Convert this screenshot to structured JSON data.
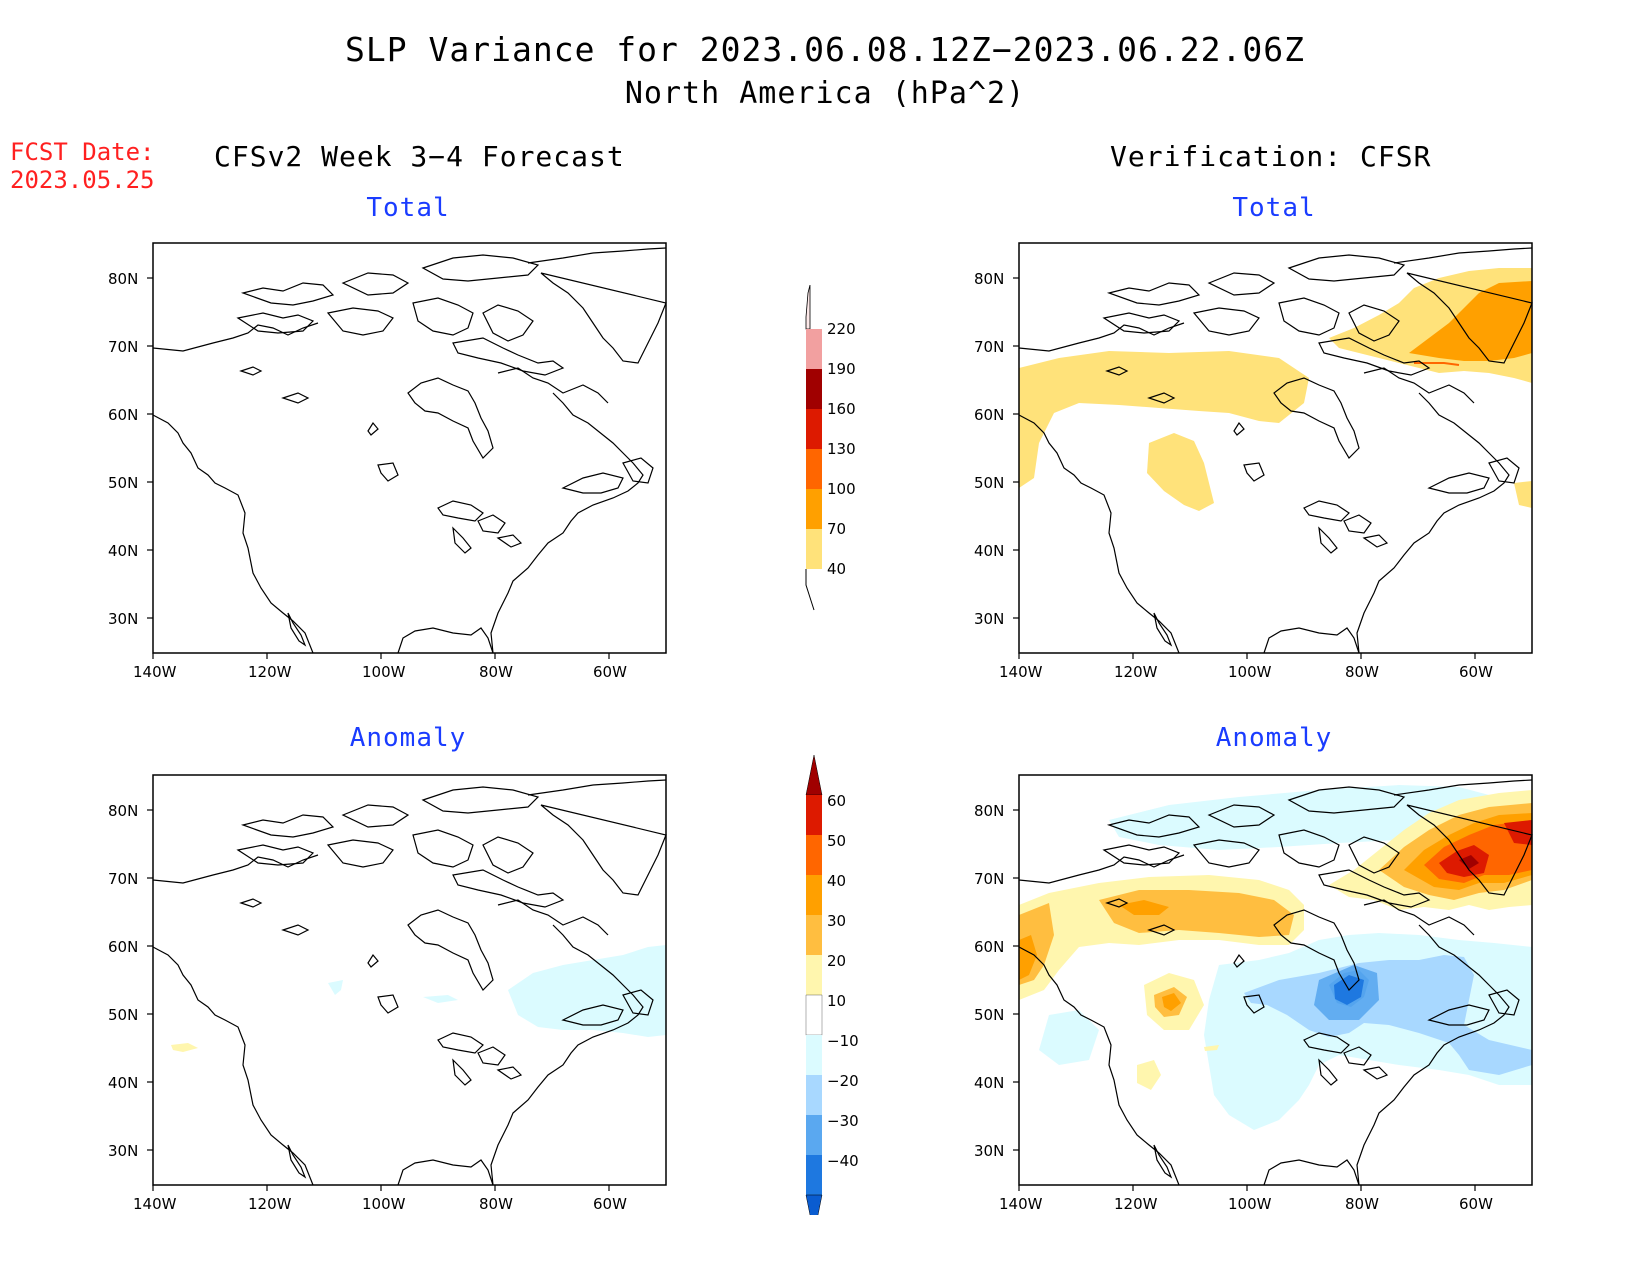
{
  "header": {
    "title": "SLP Variance for 2023.06.08.12Z−2023.06.22.06Z",
    "subtitle": "North America (hPa^2)"
  },
  "fcst_date": {
    "label": "FCST Date:",
    "value": "2023.05.25"
  },
  "columns": {
    "left": "CFSv2 Week 3−4 Forecast",
    "right": "Verification: CFSR"
  },
  "panels": {
    "top_left": {
      "title": "Total"
    },
    "top_right": {
      "title": "Total"
    },
    "bottom_left": {
      "title": "Anomaly"
    },
    "bottom_right": {
      "title": "Anomaly"
    }
  },
  "axes": {
    "lat_labels": [
      "80N",
      "70N",
      "60N",
      "50N",
      "40N",
      "30N"
    ],
    "lon_labels": [
      "140W",
      "120W",
      "100W",
      "80W",
      "60W"
    ],
    "lat_range": [
      25,
      85
    ],
    "lon_range": [
      -140,
      -50
    ]
  },
  "colorbar_total": {
    "labels": [
      "220",
      "190",
      "160",
      "130",
      "100",
      "70",
      "40"
    ],
    "colors": [
      "#fde9e9",
      "#f2a0a0",
      "#a00000",
      "#dd1a00",
      "#ff6600",
      "#ffa000",
      "#ffe27a"
    ]
  },
  "colorbar_anomaly": {
    "labels": [
      "60",
      "50",
      "40",
      "30",
      "20",
      "10",
      "−10",
      "−20",
      "−30",
      "−40"
    ],
    "colors": [
      "#a00000",
      "#dd1a00",
      "#ff6600",
      "#ffa000",
      "#ffbe40",
      "#fff6ae",
      "#ffffff",
      "#dbfbff",
      "#a8d8ff",
      "#5aa8f0",
      "#1e78e0",
      "#0a5cd0"
    ]
  },
  "map_fills": {
    "forecast_anomaly": [
      {
        "name": "blue-neg-east",
        "color": "#dbfbff"
      },
      {
        "name": "light-blue-blob",
        "color": "#dbfbff"
      },
      {
        "name": "yellow-pacific",
        "color": "#fff6ae"
      }
    ],
    "verification_total": [
      {
        "name": "yellow-band",
        "color": "#ffe27a"
      },
      {
        "name": "orange-greenland",
        "color": "#ffa000"
      }
    ]
  }
}
